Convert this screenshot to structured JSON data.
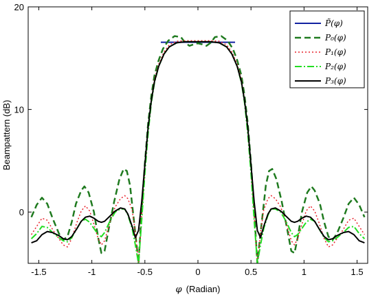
{
  "chart_data": {
    "type": "line",
    "xlabel_symbol": "φ",
    "xlabel_text": "(Radian)",
    "ylabel": "Beampattern (dB)",
    "xlim": [
      -1.6,
      1.6
    ],
    "ylim": [
      -5,
      20
    ],
    "grid": false,
    "legend_position": "top-right",
    "x_ticks": [
      -1.5,
      -1,
      -0.5,
      0,
      0.5,
      1,
      1.5
    ],
    "x_tick_labels": [
      "-1.5",
      "-1",
      "-0.5",
      "0",
      "0.5",
      "1",
      "1.5"
    ],
    "y_ticks": [
      0,
      10,
      20
    ],
    "y_tick_labels": [
      "0",
      "10",
      "20"
    ],
    "series": [
      {
        "name": "P̃(φ)",
        "color": "#1020a0",
        "dash": "",
        "width": 2,
        "points": [
          [
            -0.35,
            16.55
          ],
          [
            0.35,
            16.55
          ]
        ]
      },
      {
        "name": "P0(φ)",
        "color": "#1f7a1f",
        "dash": "9,5",
        "width": 2.5,
        "points": [
          [
            -1.57,
            -0.5
          ],
          [
            -1.52,
            0.7
          ],
          [
            -1.47,
            1.4
          ],
          [
            -1.42,
            0.8
          ],
          [
            -1.37,
            -0.6
          ],
          [
            -1.31,
            -2.1
          ],
          [
            -1.27,
            -2.7
          ],
          [
            -1.23,
            -2.4
          ],
          [
            -1.19,
            -1.0
          ],
          [
            -1.15,
            0.8
          ],
          [
            -1.1,
            2.1
          ],
          [
            -1.07,
            2.5
          ],
          [
            -1.03,
            1.9
          ],
          [
            -0.98,
            0.0
          ],
          [
            -0.94,
            -2.5
          ],
          [
            -0.91,
            -4.0
          ],
          [
            -0.88,
            -3.8
          ],
          [
            -0.84,
            -1.6
          ],
          [
            -0.79,
            1.0
          ],
          [
            -0.74,
            3.2
          ],
          [
            -0.7,
            4.2
          ],
          [
            -0.67,
            4.0
          ],
          [
            -0.64,
            2.6
          ],
          [
            -0.61,
            -0.2
          ],
          [
            -0.58,
            -3.0
          ],
          [
            -0.56,
            -5.0
          ],
          [
            -0.53,
            0.2
          ],
          [
            -0.5,
            4.8
          ],
          [
            -0.47,
            8.6
          ],
          [
            -0.44,
            11.3
          ],
          [
            -0.41,
            13.3
          ],
          [
            -0.37,
            14.8
          ],
          [
            -0.33,
            15.9
          ],
          [
            -0.28,
            16.7
          ],
          [
            -0.22,
            17.15
          ],
          [
            -0.16,
            17.05
          ],
          [
            -0.12,
            16.5
          ],
          [
            -0.08,
            16.2
          ],
          [
            -0.04,
            16.35
          ],
          [
            0.0,
            16.45
          ],
          [
            0.04,
            16.35
          ],
          [
            0.08,
            16.2
          ],
          [
            0.12,
            16.5
          ],
          [
            0.16,
            17.05
          ],
          [
            0.22,
            17.15
          ],
          [
            0.28,
            16.7
          ],
          [
            0.33,
            15.9
          ],
          [
            0.37,
            14.8
          ],
          [
            0.41,
            13.3
          ],
          [
            0.44,
            11.3
          ],
          [
            0.47,
            8.6
          ],
          [
            0.5,
            4.8
          ],
          [
            0.53,
            0.2
          ],
          [
            0.56,
            -5.0
          ],
          [
            0.58,
            -3.0
          ],
          [
            0.61,
            -0.2
          ],
          [
            0.64,
            2.6
          ],
          [
            0.67,
            4.0
          ],
          [
            0.7,
            4.2
          ],
          [
            0.74,
            3.2
          ],
          [
            0.79,
            1.0
          ],
          [
            0.84,
            -1.6
          ],
          [
            0.88,
            -3.8
          ],
          [
            0.91,
            -4.0
          ],
          [
            0.94,
            -2.5
          ],
          [
            0.98,
            0.0
          ],
          [
            1.03,
            1.9
          ],
          [
            1.07,
            2.5
          ],
          [
            1.1,
            2.1
          ],
          [
            1.15,
            0.8
          ],
          [
            1.19,
            -1.0
          ],
          [
            1.23,
            -2.4
          ],
          [
            1.27,
            -2.7
          ],
          [
            1.31,
            -2.1
          ],
          [
            1.37,
            -0.6
          ],
          [
            1.42,
            0.8
          ],
          [
            1.47,
            1.4
          ],
          [
            1.52,
            0.7
          ],
          [
            1.57,
            -0.5
          ]
        ]
      },
      {
        "name": "P1(φ)",
        "color": "#e8202a",
        "dash": "2,3",
        "width": 1.5,
        "points": [
          [
            -1.57,
            -2.2
          ],
          [
            -1.52,
            -1.4
          ],
          [
            -1.47,
            -0.6
          ],
          [
            -1.42,
            -0.8
          ],
          [
            -1.37,
            -1.7
          ],
          [
            -1.31,
            -2.6
          ],
          [
            -1.27,
            -3.2
          ],
          [
            -1.23,
            -3.4
          ],
          [
            -1.19,
            -2.6
          ],
          [
            -1.14,
            -1.0
          ],
          [
            -1.1,
            0.1
          ],
          [
            -1.06,
            0.6
          ],
          [
            -1.02,
            0.1
          ],
          [
            -0.98,
            -1.2
          ],
          [
            -0.94,
            -2.6
          ],
          [
            -0.91,
            -3.2
          ],
          [
            -0.88,
            -2.8
          ],
          [
            -0.83,
            -1.0
          ],
          [
            -0.78,
            0.5
          ],
          [
            -0.73,
            1.3
          ],
          [
            -0.69,
            1.6
          ],
          [
            -0.66,
            1.3
          ],
          [
            -0.62,
            0.2
          ],
          [
            -0.59,
            -2.0
          ],
          [
            -0.56,
            -5.0
          ],
          [
            -0.53,
            -0.2
          ],
          [
            -0.5,
            4.2
          ],
          [
            -0.47,
            8.0
          ],
          [
            -0.44,
            10.9
          ],
          [
            -0.41,
            12.9
          ],
          [
            -0.37,
            14.4
          ],
          [
            -0.32,
            15.6
          ],
          [
            -0.27,
            16.3
          ],
          [
            -0.2,
            16.65
          ],
          [
            -0.12,
            16.7
          ],
          [
            0.0,
            16.7
          ],
          [
            0.12,
            16.7
          ],
          [
            0.2,
            16.65
          ],
          [
            0.27,
            16.3
          ],
          [
            0.32,
            15.6
          ],
          [
            0.37,
            14.4
          ],
          [
            0.41,
            12.9
          ],
          [
            0.44,
            10.9
          ],
          [
            0.47,
            8.0
          ],
          [
            0.5,
            4.2
          ],
          [
            0.53,
            -0.2
          ],
          [
            0.56,
            -5.0
          ],
          [
            0.59,
            -2.0
          ],
          [
            0.62,
            0.2
          ],
          [
            0.66,
            1.3
          ],
          [
            0.69,
            1.6
          ],
          [
            0.73,
            1.3
          ],
          [
            0.78,
            0.5
          ],
          [
            0.83,
            -1.0
          ],
          [
            0.88,
            -2.8
          ],
          [
            0.91,
            -3.2
          ],
          [
            0.94,
            -2.6
          ],
          [
            0.98,
            -1.2
          ],
          [
            1.02,
            0.1
          ],
          [
            1.06,
            0.6
          ],
          [
            1.1,
            0.1
          ],
          [
            1.14,
            -1.0
          ],
          [
            1.19,
            -2.6
          ],
          [
            1.23,
            -3.4
          ],
          [
            1.27,
            -3.2
          ],
          [
            1.31,
            -2.6
          ],
          [
            1.37,
            -1.7
          ],
          [
            1.42,
            -0.8
          ],
          [
            1.47,
            -0.6
          ],
          [
            1.52,
            -1.4
          ],
          [
            1.57,
            -2.2
          ]
        ]
      },
      {
        "name": "P2(φ)",
        "color": "#22dd22",
        "dash": "10,3,2,3",
        "width": 2,
        "points": [
          [
            -1.57,
            -2.6
          ],
          [
            -1.52,
            -2.1
          ],
          [
            -1.47,
            -1.4
          ],
          [
            -1.42,
            -1.5
          ],
          [
            -1.37,
            -2.0
          ],
          [
            -1.31,
            -2.5
          ],
          [
            -1.27,
            -2.8
          ],
          [
            -1.23,
            -2.9
          ],
          [
            -1.19,
            -2.5
          ],
          [
            -1.14,
            -1.6
          ],
          [
            -1.1,
            -0.9
          ],
          [
            -1.06,
            -0.7
          ],
          [
            -1.02,
            -1.0
          ],
          [
            -0.98,
            -1.6
          ],
          [
            -0.94,
            -2.2
          ],
          [
            -0.91,
            -2.4
          ],
          [
            -0.88,
            -2.0
          ],
          [
            -0.83,
            -0.9
          ],
          [
            -0.78,
            0.0
          ],
          [
            -0.73,
            0.3
          ],
          [
            -0.69,
            0.3
          ],
          [
            -0.66,
            -0.3
          ],
          [
            -0.62,
            -1.6
          ],
          [
            -0.59,
            -3.2
          ],
          [
            -0.56,
            -5.0
          ],
          [
            -0.53,
            -0.8
          ],
          [
            -0.5,
            3.8
          ],
          [
            -0.47,
            7.6
          ],
          [
            -0.44,
            10.6
          ],
          [
            -0.41,
            12.6
          ],
          [
            -0.37,
            14.2
          ],
          [
            -0.32,
            15.4
          ],
          [
            -0.27,
            16.1
          ],
          [
            -0.2,
            16.5
          ],
          [
            -0.12,
            16.6
          ],
          [
            0.0,
            16.6
          ],
          [
            0.12,
            16.6
          ],
          [
            0.2,
            16.5
          ],
          [
            0.27,
            16.1
          ],
          [
            0.32,
            15.4
          ],
          [
            0.37,
            14.2
          ],
          [
            0.41,
            12.6
          ],
          [
            0.44,
            10.6
          ],
          [
            0.47,
            7.6
          ],
          [
            0.5,
            3.8
          ],
          [
            0.53,
            -0.8
          ],
          [
            0.56,
            -5.0
          ],
          [
            0.59,
            -3.2
          ],
          [
            0.62,
            -1.6
          ],
          [
            0.66,
            -0.3
          ],
          [
            0.69,
            0.3
          ],
          [
            0.73,
            0.3
          ],
          [
            0.78,
            0.0
          ],
          [
            0.83,
            -0.9
          ],
          [
            0.88,
            -2.0
          ],
          [
            0.91,
            -2.4
          ],
          [
            0.94,
            -2.2
          ],
          [
            0.98,
            -1.6
          ],
          [
            1.02,
            -1.0
          ],
          [
            1.06,
            -0.7
          ],
          [
            1.1,
            -0.9
          ],
          [
            1.14,
            -1.6
          ],
          [
            1.19,
            -2.5
          ],
          [
            1.23,
            -2.9
          ],
          [
            1.27,
            -2.8
          ],
          [
            1.31,
            -2.5
          ],
          [
            1.37,
            -2.0
          ],
          [
            1.42,
            -1.5
          ],
          [
            1.47,
            -1.4
          ],
          [
            1.52,
            -2.1
          ],
          [
            1.57,
            -2.6
          ]
        ]
      },
      {
        "name": "P3(φ)",
        "color": "#000000",
        "dash": "",
        "width": 2,
        "points": [
          [
            -1.57,
            -3.0
          ],
          [
            -1.52,
            -2.8
          ],
          [
            -1.47,
            -2.2
          ],
          [
            -1.42,
            -1.9
          ],
          [
            -1.37,
            -2.0
          ],
          [
            -1.31,
            -2.3
          ],
          [
            -1.27,
            -2.6
          ],
          [
            -1.23,
            -2.7
          ],
          [
            -1.19,
            -2.4
          ],
          [
            -1.14,
            -1.6
          ],
          [
            -1.1,
            -0.9
          ],
          [
            -1.06,
            -0.5
          ],
          [
            -1.02,
            -0.4
          ],
          [
            -0.98,
            -0.6
          ],
          [
            -0.94,
            -0.9
          ],
          [
            -0.91,
            -1.0
          ],
          [
            -0.88,
            -0.9
          ],
          [
            -0.83,
            -0.4
          ],
          [
            -0.78,
            0.1
          ],
          [
            -0.73,
            0.4
          ],
          [
            -0.69,
            0.3
          ],
          [
            -0.66,
            -0.2
          ],
          [
            -0.62,
            -1.4
          ],
          [
            -0.59,
            -2.5
          ],
          [
            -0.56,
            -1.8
          ],
          [
            -0.53,
            1.0
          ],
          [
            -0.5,
            4.6
          ],
          [
            -0.47,
            8.2
          ],
          [
            -0.44,
            10.8
          ],
          [
            -0.41,
            12.7
          ],
          [
            -0.37,
            14.2
          ],
          [
            -0.32,
            15.4
          ],
          [
            -0.27,
            16.1
          ],
          [
            -0.2,
            16.5
          ],
          [
            -0.12,
            16.6
          ],
          [
            0.0,
            16.6
          ],
          [
            0.12,
            16.6
          ],
          [
            0.2,
            16.5
          ],
          [
            0.27,
            16.1
          ],
          [
            0.32,
            15.4
          ],
          [
            0.37,
            14.2
          ],
          [
            0.41,
            12.7
          ],
          [
            0.44,
            10.8
          ],
          [
            0.47,
            8.2
          ],
          [
            0.5,
            4.6
          ],
          [
            0.53,
            1.0
          ],
          [
            0.56,
            -1.8
          ],
          [
            0.59,
            -2.5
          ],
          [
            0.62,
            -1.4
          ],
          [
            0.66,
            -0.2
          ],
          [
            0.69,
            0.3
          ],
          [
            0.73,
            0.4
          ],
          [
            0.78,
            0.1
          ],
          [
            0.83,
            -0.4
          ],
          [
            0.88,
            -0.9
          ],
          [
            0.91,
            -1.0
          ],
          [
            0.94,
            -0.9
          ],
          [
            0.98,
            -0.6
          ],
          [
            1.02,
            -0.4
          ],
          [
            1.06,
            -0.5
          ],
          [
            1.1,
            -0.9
          ],
          [
            1.14,
            -1.6
          ],
          [
            1.19,
            -2.4
          ],
          [
            1.23,
            -2.7
          ],
          [
            1.27,
            -2.6
          ],
          [
            1.31,
            -2.3
          ],
          [
            1.37,
            -2.0
          ],
          [
            1.42,
            -1.9
          ],
          [
            1.47,
            -2.2
          ],
          [
            1.52,
            -2.8
          ],
          [
            1.57,
            -3.0
          ]
        ]
      }
    ]
  }
}
